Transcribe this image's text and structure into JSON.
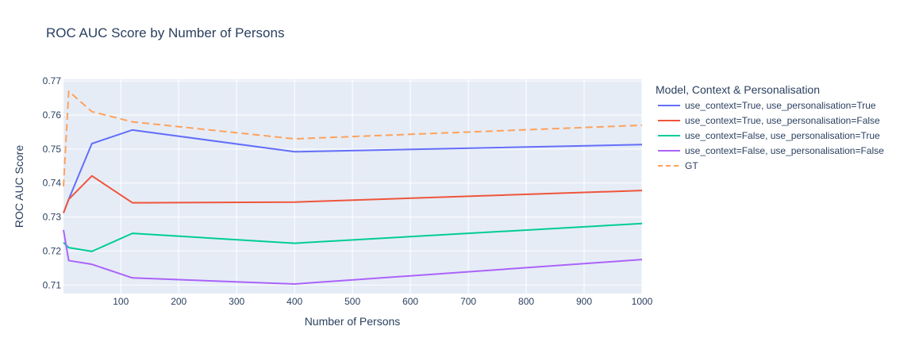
{
  "chart_data": {
    "type": "line",
    "title": "ROC AUC Score by Number of Persons",
    "xlabel": "Number of Persons",
    "ylabel": "ROC AUC Score",
    "xlim": [
      1,
      1000
    ],
    "ylim": [
      0.7075,
      0.7705
    ],
    "x_ticks": [
      100,
      200,
      300,
      400,
      500,
      600,
      700,
      800,
      900,
      1000
    ],
    "y_ticks": [
      0.71,
      0.72,
      0.73,
      0.74,
      0.75,
      0.76,
      0.77
    ],
    "grid": true,
    "legend_title": "Model, Context & Personalisation",
    "legend_position": "right",
    "x": [
      1,
      10,
      50,
      120,
      400,
      1000
    ],
    "series": [
      {
        "name": "use_context=True, use_personalisation=True",
        "color": "#636efa",
        "dash": "solid",
        "values": [
          0.7312,
          0.7352,
          0.7516,
          0.7556,
          0.7492,
          0.7513
        ]
      },
      {
        "name": "use_context=True, use_personalisation=False",
        "color": "#ef553b",
        "dash": "solid",
        "values": [
          0.7312,
          0.7352,
          0.7421,
          0.7342,
          0.7344,
          0.7378
        ]
      },
      {
        "name": "use_context=False, use_personalisation=True",
        "color": "#00cc96",
        "dash": "solid",
        "values": [
          0.7225,
          0.721,
          0.7199,
          0.7252,
          0.7223,
          0.7281
        ]
      },
      {
        "name": "use_context=False, use_personalisation=False",
        "color": "#ab63fa",
        "dash": "solid",
        "values": [
          0.7262,
          0.7172,
          0.7161,
          0.7121,
          0.7103,
          0.7175
        ]
      },
      {
        "name": "GT",
        "color": "#ffa15a",
        "dash": "dash",
        "values": [
          0.739,
          0.767,
          0.761,
          0.758,
          0.753,
          0.757
        ]
      }
    ]
  }
}
